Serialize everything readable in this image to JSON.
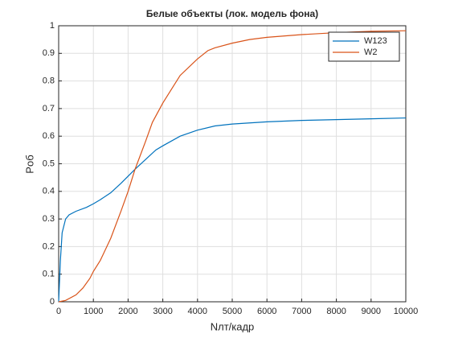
{
  "chart_data": {
    "type": "line",
    "title": "Белые объекты (лок. модель фона)",
    "x_label": "Nлт/кадр",
    "y_label": "Pоб",
    "series": [
      {
        "name": "W123",
        "color": "#0072bd",
        "x": [
          0,
          50,
          100,
          200,
          300,
          500,
          800,
          1000,
          1200,
          1500,
          1800,
          2000,
          2200,
          2500,
          2800,
          3000,
          3500,
          4000,
          4500,
          5000,
          6000,
          7000,
          8000,
          9000,
          10000
        ],
        "values": [
          0,
          0.15,
          0.25,
          0.3,
          0.315,
          0.328,
          0.342,
          0.355,
          0.37,
          0.395,
          0.43,
          0.455,
          0.48,
          0.515,
          0.55,
          0.565,
          0.6,
          0.622,
          0.637,
          0.644,
          0.652,
          0.657,
          0.66,
          0.663,
          0.666
        ]
      },
      {
        "name": "W2",
        "color": "#d95319",
        "x": [
          0,
          200,
          500,
          700,
          900,
          1000,
          1200,
          1500,
          1800,
          2000,
          2200,
          2500,
          2700,
          3000,
          3300,
          3500,
          4000,
          4300,
          4500,
          5000,
          5500,
          6000,
          7000,
          8000,
          9000,
          10000
        ],
        "values": [
          0,
          0.005,
          0.025,
          0.05,
          0.085,
          0.11,
          0.15,
          0.23,
          0.33,
          0.4,
          0.48,
          0.58,
          0.65,
          0.72,
          0.78,
          0.82,
          0.88,
          0.91,
          0.92,
          0.937,
          0.95,
          0.958,
          0.968,
          0.975,
          0.98,
          0.982
        ]
      }
    ],
    "xlim": [
      0,
      10000
    ],
    "xticks": [
      0,
      1000,
      2000,
      3000,
      4000,
      5000,
      6000,
      7000,
      8000,
      9000,
      10000
    ],
    "ylim": [
      0,
      1
    ],
    "yticks": [
      0,
      0.1,
      0.2,
      0.3,
      0.4,
      0.5,
      0.6,
      0.7,
      0.8,
      0.9,
      1
    ],
    "grid": true,
    "legend": "northeast"
  }
}
